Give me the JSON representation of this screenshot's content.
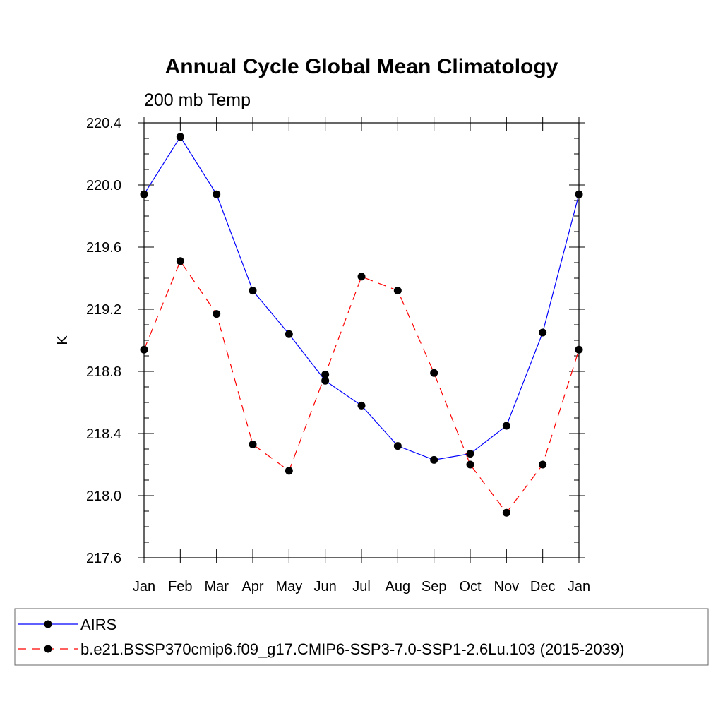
{
  "chart_data": {
    "type": "line",
    "title": "Annual Cycle Global Mean Climatology",
    "subtitle": "200 mb Temp",
    "xlabel": "",
    "ylabel": "K",
    "categories": [
      "Jan",
      "Feb",
      "Mar",
      "Apr",
      "May",
      "Jun",
      "Jul",
      "Aug",
      "Sep",
      "Oct",
      "Nov",
      "Dec",
      "Jan"
    ],
    "ylim": [
      217.6,
      220.4
    ],
    "yticks": [
      "217.6",
      "218.0",
      "218.4",
      "218.8",
      "219.2",
      "219.6",
      "220.0",
      "220.4"
    ],
    "grid": false,
    "legend_position": "bottom",
    "series": [
      {
        "name": "AIRS",
        "color": "#0000ff",
        "dash": "solid",
        "values": [
          219.94,
          220.31,
          219.94,
          219.32,
          219.04,
          218.74,
          218.58,
          218.32,
          218.23,
          218.27,
          218.45,
          219.05,
          219.94
        ]
      },
      {
        "name": "b.e21.BSSP370cmip6.f09_g17.CMIP6-SSP3-7.0-SSP1-2.6Lu.103 (2015-2039)",
        "color": "#ff0000",
        "dash": "dashed",
        "values": [
          218.94,
          219.51,
          219.17,
          218.33,
          218.16,
          218.78,
          219.41,
          219.32,
          218.79,
          218.2,
          217.89,
          218.2,
          218.94
        ]
      }
    ]
  }
}
